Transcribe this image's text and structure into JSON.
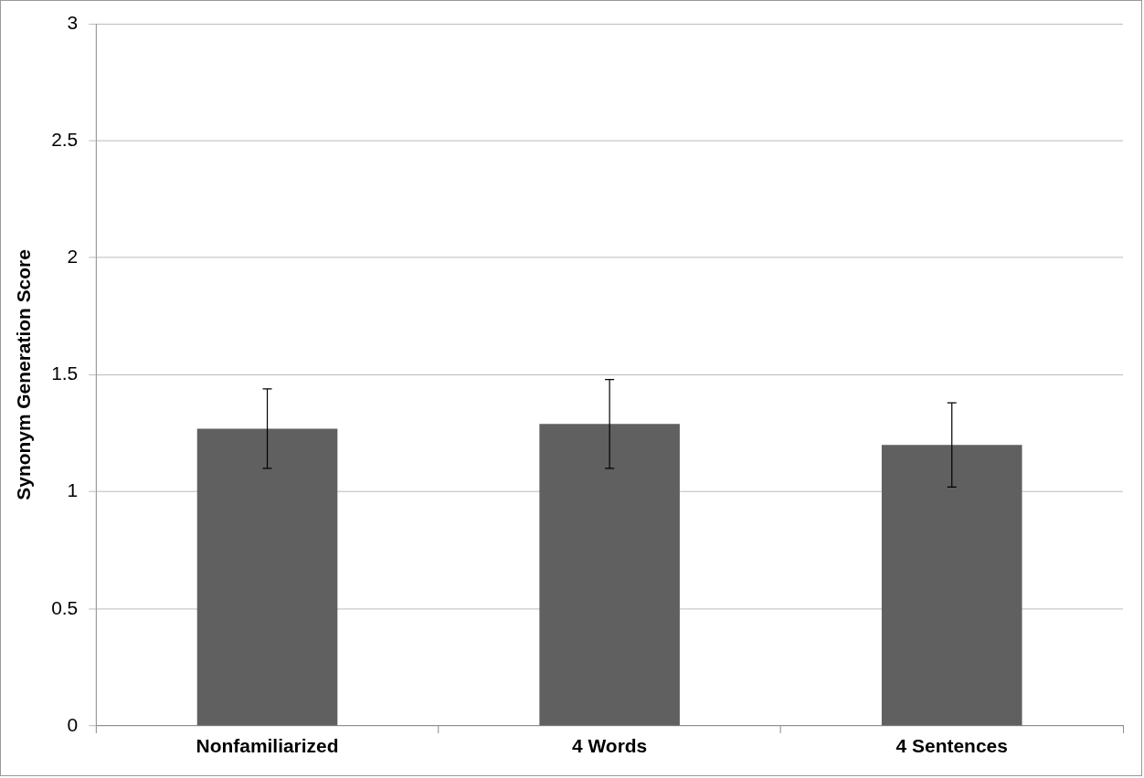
{
  "chart_data": {
    "type": "bar",
    "ylabel": "Synonym Generation Score",
    "categories": [
      "Nonfamiliarized",
      "4 Words",
      "4 Sentences"
    ],
    "values": [
      1.27,
      1.29,
      1.2
    ],
    "errors": [
      0.17,
      0.19,
      0.18
    ],
    "color": "#606060",
    "ylim": [
      0,
      3
    ],
    "yticks": [
      0,
      0.5,
      1,
      1.5,
      2,
      2.5,
      3
    ],
    "grid": "y",
    "legend": false
  }
}
